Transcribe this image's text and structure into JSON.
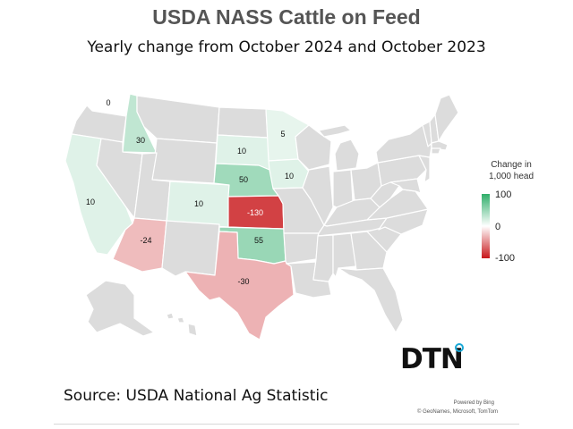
{
  "title": "USDA NASS Cattle on Feed",
  "subtitle": "Yearly change from October 2024 and October 2023",
  "legend": {
    "title_line1": "Change in",
    "title_line2": "1,000 head",
    "max_label": "100",
    "mid_label": "0",
    "min_label": "-100",
    "max_color": "#2fae6a",
    "mid_color": "#ffffff",
    "min_color": "#c8171b"
  },
  "colors": {
    "no_data": "#dcdcdc",
    "border": "#ffffff"
  },
  "states": [
    {
      "id": "WA",
      "value": 0,
      "label": "0"
    },
    {
      "id": "ID",
      "value": 30,
      "label": "30"
    },
    {
      "id": "CA",
      "value": 10,
      "label": "10"
    },
    {
      "id": "AZ",
      "value": -24,
      "label": "-24"
    },
    {
      "id": "CO",
      "value": 10,
      "label": "10"
    },
    {
      "id": "SD",
      "value": 10,
      "label": "10"
    },
    {
      "id": "MN",
      "value": 5,
      "label": "5"
    },
    {
      "id": "NE",
      "value": 50,
      "label": "50"
    },
    {
      "id": "IA",
      "value": 10,
      "label": "10"
    },
    {
      "id": "KS",
      "value": -130,
      "label": "-130"
    },
    {
      "id": "OK",
      "value": 55,
      "label": "55"
    },
    {
      "id": "TX",
      "value": -30,
      "label": "-30"
    }
  ],
  "logo": "DTN",
  "source": "Source: USDA National Ag Statistic",
  "attribution": {
    "powered_by": "Powered by Bing",
    "credits": "© GeoNames, Microsoft, TomTom"
  }
}
